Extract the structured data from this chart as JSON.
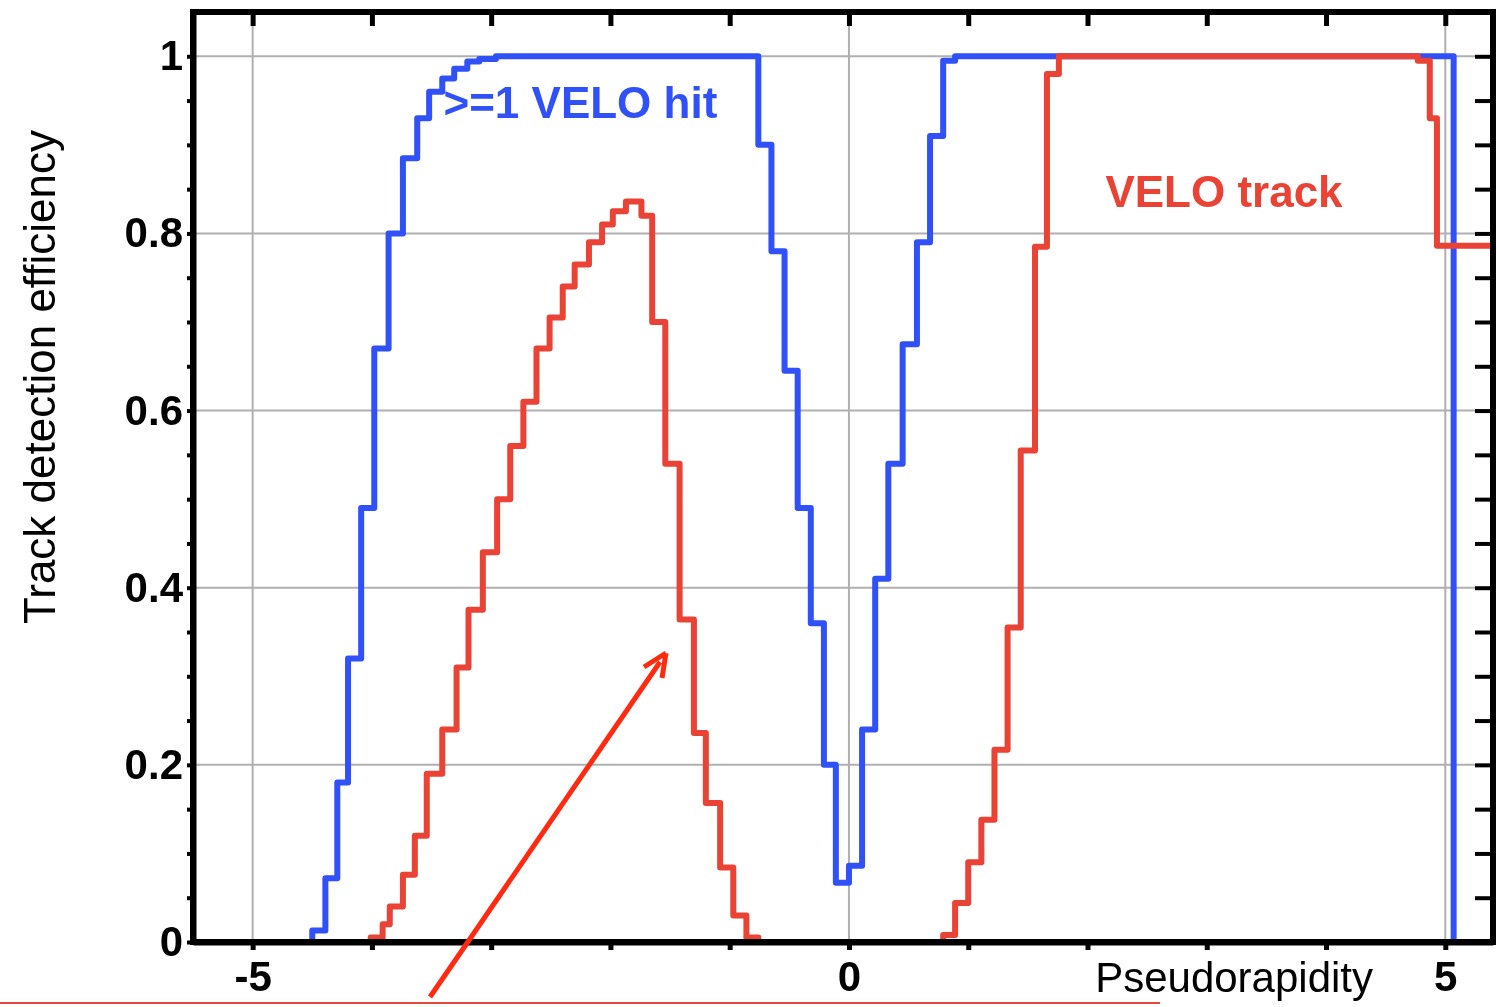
{
  "chart_data": {
    "type": "step",
    "xlabel": "Pseudorapidity",
    "ylabel": "Track detection efficiency",
    "xlim": [
      -5.5,
      5.4
    ],
    "ylim": [
      0,
      1.05
    ],
    "xticks": [
      {
        "value": -5,
        "label": "-5"
      },
      {
        "value": -4,
        "label": null
      },
      {
        "value": -3,
        "label": null
      },
      {
        "value": -2,
        "label": null
      },
      {
        "value": -1,
        "label": null
      },
      {
        "value": 0,
        "label": "0"
      },
      {
        "value": 1,
        "label": null
      },
      {
        "value": 2,
        "label": null
      },
      {
        "value": 3,
        "label": null
      },
      {
        "value": 4,
        "label": null
      },
      {
        "value": 5,
        "label": "5"
      }
    ],
    "yticks": [
      0,
      {
        "value": 0.05,
        "label": null
      },
      {
        "value": 0.1,
        "label": null
      },
      {
        "value": 0.15,
        "label": null
      },
      0.2,
      {
        "value": 0.25,
        "label": null
      },
      {
        "value": 0.3,
        "label": null
      },
      {
        "value": 0.35,
        "label": null
      },
      0.4,
      {
        "value": 0.45,
        "label": null
      },
      {
        "value": 0.5,
        "label": null
      },
      {
        "value": 0.55,
        "label": null
      },
      0.6,
      {
        "value": 0.65,
        "label": null
      },
      {
        "value": 0.7,
        "label": null
      },
      {
        "value": 0.75,
        "label": null
      },
      0.8,
      {
        "value": 0.85,
        "label": null
      },
      {
        "value": 0.9,
        "label": null
      },
      {
        "value": 0.95,
        "label": null
      },
      1
    ],
    "grid": true,
    "series": [
      {
        "name": ">=1 VELO hit",
        "color": "#3050f8",
        "x": [
          -5.5,
          -4.5,
          -4.39,
          -4.29,
          -4.2,
          -4.09,
          -3.98,
          -3.86,
          -3.74,
          -3.62,
          -3.52,
          -3.41,
          -3.31,
          -3.2,
          -3.1,
          -2.96,
          -0.76,
          -0.65,
          -0.54,
          -0.43,
          -0.32,
          -0.21,
          -0.11,
          0,
          0.11,
          0.22,
          0.33,
          0.45,
          0.57,
          0.68,
          0.79,
          0.89,
          5.07,
          5.4
        ],
        "values": [
          0,
          0.013,
          0.072,
          0.18,
          0.32,
          0.49,
          0.67,
          0.8,
          0.885,
          0.93,
          0.96,
          0.975,
          0.986,
          0.994,
          0.997,
          1,
          0.9,
          0.78,
          0.645,
          0.49,
          0.36,
          0.2,
          0.067,
          0.086,
          0.24,
          0.41,
          0.54,
          0.675,
          0.79,
          0.91,
          0.995,
          1,
          0,
          0
        ]
      },
      {
        "name": "VELO track",
        "color": "#ea4234",
        "x": [
          -5.5,
          -4.01,
          -3.91,
          -3.85,
          -3.74,
          -3.64,
          -3.54,
          -3.41,
          -3.29,
          -3.19,
          -3.07,
          -2.95,
          -2.84,
          -2.73,
          -2.62,
          -2.51,
          -2.4,
          -2.3,
          -2.18,
          -2.07,
          -1.98,
          -1.87,
          -1.74,
          -1.65,
          -1.54,
          -1.42,
          -1.3,
          -1.2,
          -1.08,
          -0.97,
          -0.86,
          -0.76,
          0.79,
          0.89,
          1,
          1.11,
          1.22,
          1.33,
          1.44,
          1.56,
          1.66,
          1.76,
          4.77,
          4.87,
          4.93,
          5.4
        ],
        "values": [
          0,
          0.005,
          0.02,
          0.04,
          0.076,
          0.12,
          0.19,
          0.24,
          0.31,
          0.375,
          0.44,
          0.5,
          0.56,
          0.61,
          0.67,
          0.705,
          0.74,
          0.765,
          0.79,
          0.81,
          0.825,
          0.836,
          0.82,
          0.7,
          0.54,
          0.364,
          0.236,
          0.157,
          0.084,
          0.03,
          0.005,
          0,
          0.008,
          0.044,
          0.09,
          0.138,
          0.217,
          0.355,
          0.555,
          0.785,
          0.98,
          1,
          0.995,
          0.93,
          0.786,
          0.786
        ]
      }
    ]
  }
}
